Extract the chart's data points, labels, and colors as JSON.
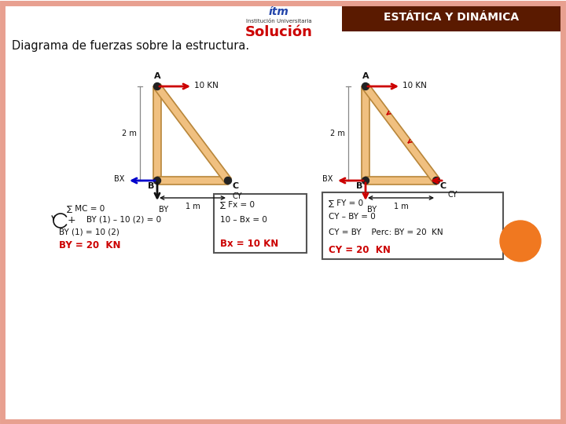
{
  "title_header": "ESTÁTICA Y DINÁMICA",
  "title_header_color": "#ffffff",
  "title_header_bg": "#5a1a00",
  "subtitle": "Solución",
  "subtitle_color": "#cc0000",
  "main_text": "Diagrama de fuerzas sobre la estructura.",
  "bg_color": "#ffffff",
  "border_color": "#e8a090",
  "beam_color": "#f0c080",
  "beam_edge_color": "#b8863a",
  "arrow_red": "#cc0000",
  "arrow_blue": "#0000cc",
  "arrow_dark": "#111111",
  "text_black": "#111111",
  "text_red": "#cc0000",
  "orange_circle_color": "#f07820"
}
